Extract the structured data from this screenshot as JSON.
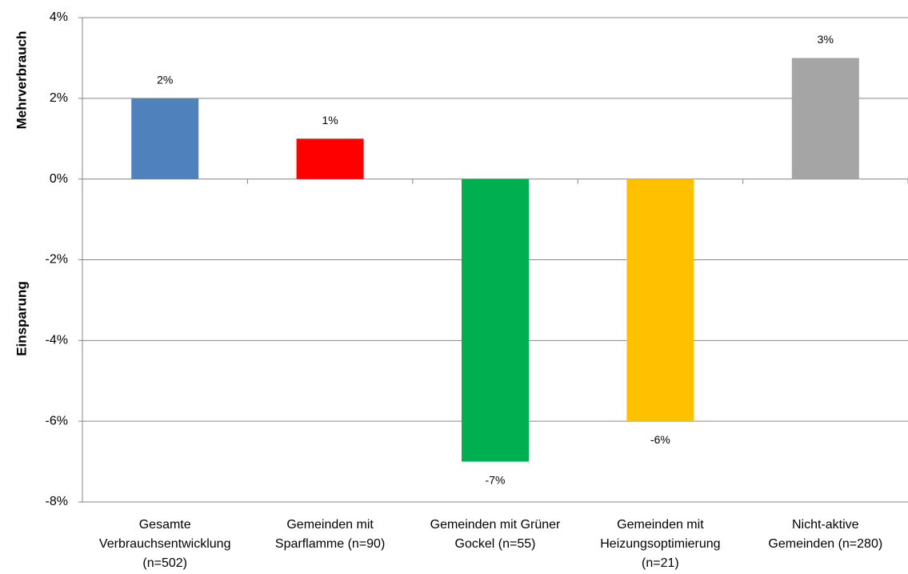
{
  "chart_data": {
    "type": "bar",
    "y_axis_labels": [
      "Mehrverbrauch",
      "Einsparung"
    ],
    "categories": [
      [
        "Gesamte",
        "Verbrauchsentwicklung",
        "(n=502)"
      ],
      [
        "Gemeinden mit",
        "Sparflamme (n=90)"
      ],
      [
        "Gemeinden mit Grüner",
        "Gockel (n=55)"
      ],
      [
        "Gemeinden mit",
        "Heizungsoptimierung",
        "(n=21)"
      ],
      [
        "Nicht-aktive",
        "Gemeinden (n=280)"
      ]
    ],
    "values": [
      2,
      1,
      -7,
      -6,
      3
    ],
    "value_labels": [
      "2%",
      "1%",
      "-7%",
      "-6%",
      "3%"
    ],
    "colors": [
      "#4f81bd",
      "#ff0000",
      "#00b050",
      "#ffc000",
      "#a5a5a5"
    ],
    "ylim": [
      -8,
      4
    ],
    "yticks": [
      {
        "value": -8,
        "label": "-8%"
      },
      {
        "value": -6,
        "label": "-6%"
      },
      {
        "value": -4,
        "label": "-4%"
      },
      {
        "value": -2,
        "label": "-2%"
      },
      {
        "value": 0,
        "label": "0%"
      },
      {
        "value": 2,
        "label": "2%"
      },
      {
        "value": 4,
        "label": "4%"
      }
    ],
    "grid": true
  }
}
